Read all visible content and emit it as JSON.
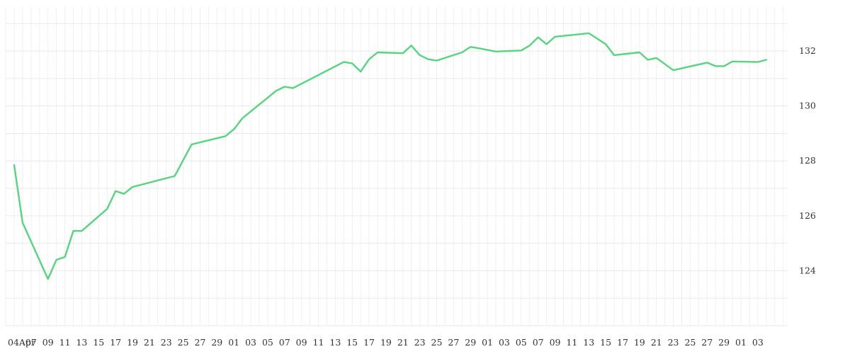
{
  "chart_data": {
    "type": "line",
    "title": "",
    "xlabel": "",
    "ylabel": "",
    "ylim": [
      122.0,
      133.6
    ],
    "grid": true,
    "colors": {
      "line": "#55d67e",
      "grid": "#ececec",
      "text": "#333333"
    },
    "y_ticks": [
      "124",
      "126",
      "128",
      "130",
      "132"
    ],
    "x_ticks": [
      "04Apr",
      "07",
      "09",
      "11",
      "13",
      "15",
      "17",
      "19",
      "21",
      "23",
      "25",
      "27",
      "29",
      "01",
      "03",
      "05",
      "07",
      "09",
      "11",
      "13",
      "15",
      "17",
      "19",
      "21",
      "23",
      "25",
      "27",
      "29",
      "01",
      "03",
      "05",
      "07",
      "09",
      "11",
      "13",
      "15",
      "17",
      "19",
      "21",
      "23",
      "25",
      "27",
      "29",
      "01",
      "03"
    ],
    "series": [
      {
        "x": [
          "04 Apr",
          "05 Apr",
          "08 Apr",
          "09 Apr",
          "10 Apr",
          "11 Apr",
          "12 Apr",
          "15 Apr",
          "16 Apr",
          "17 Apr",
          "18 Apr",
          "23 Apr",
          "25 Apr",
          "29 Apr",
          "30 Apr",
          "01 May",
          "03 May",
          "05 May",
          "06 May",
          "07 May",
          "13 May",
          "14 May",
          "15 May",
          "16 May",
          "17 May",
          "20 May",
          "21 May",
          "22 May",
          "23 May",
          "24 May",
          "27 May",
          "28 May",
          "29 May",
          "31 May",
          "03 Jun",
          "04 Jun",
          "05 Jun",
          "06 Jun",
          "07 Jun",
          "11 Jun",
          "12 Jun",
          "13 Jun",
          "14 Jun",
          "17 Jun",
          "18 Jun",
          "19 Jun",
          "21 Jun",
          "25 Jun",
          "26 Jun",
          "27 Jun",
          "28 Jun",
          "01 Jul",
          "02 Jul"
        ],
        "values": [
          127.85,
          125.75,
          123.7,
          124.4,
          124.5,
          125.45,
          125.45,
          126.25,
          126.9,
          126.8,
          127.05,
          127.45,
          128.6,
          128.9,
          129.15,
          129.55,
          130.05,
          130.55,
          130.7,
          130.65,
          131.6,
          131.55,
          131.25,
          131.7,
          131.95,
          131.92,
          132.2,
          131.85,
          131.7,
          131.65,
          131.95,
          132.15,
          132.1,
          131.98,
          132.02,
          132.2,
          132.5,
          132.25,
          132.52,
          132.65,
          132.45,
          132.25,
          131.85,
          131.95,
          131.68,
          131.75,
          131.3,
          131.58,
          131.45,
          131.45,
          131.62,
          131.6,
          131.68
        ]
      }
    ]
  }
}
